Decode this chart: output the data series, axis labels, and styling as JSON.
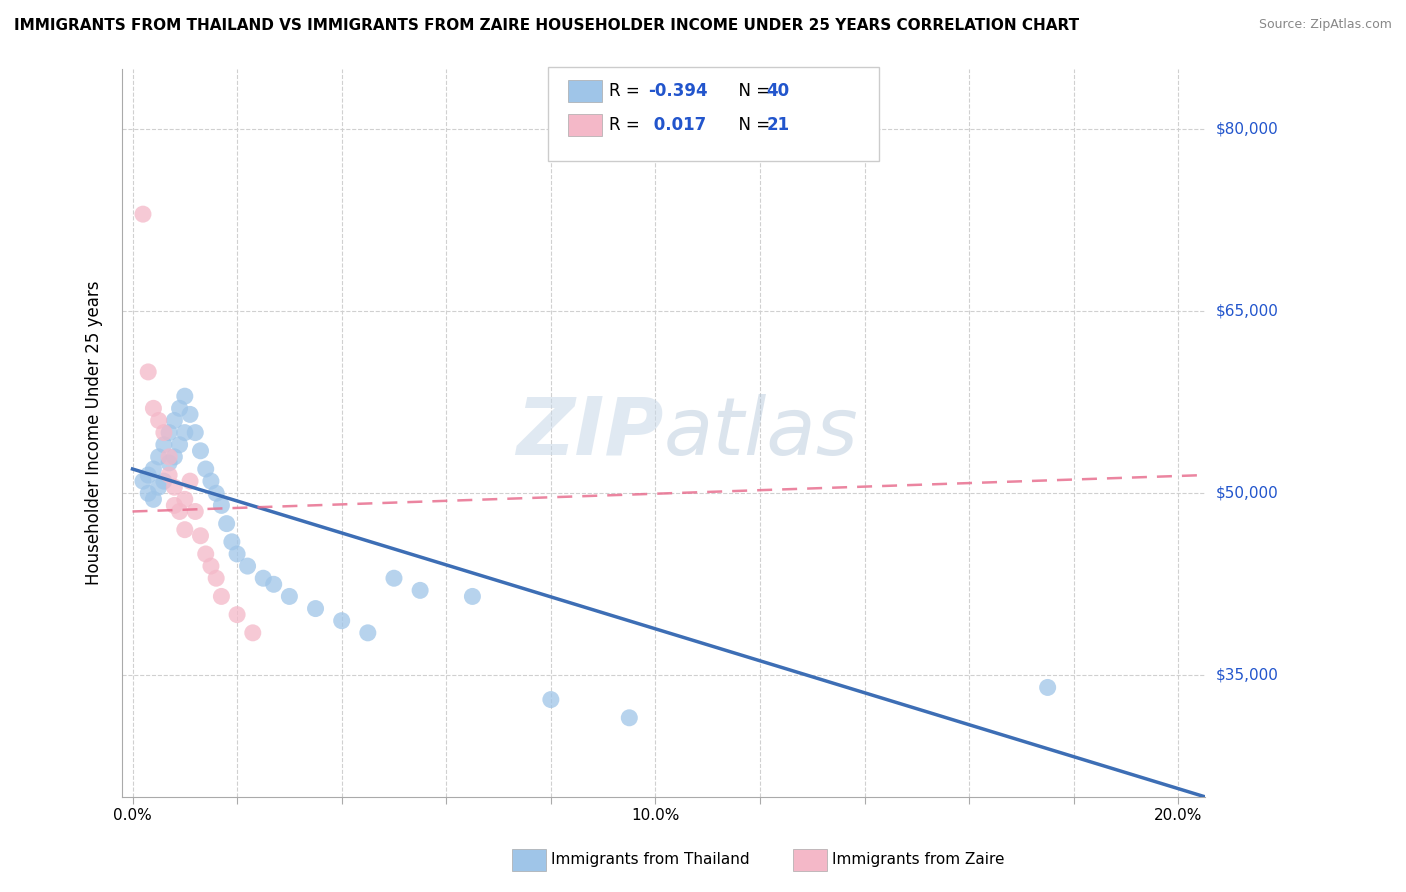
{
  "title": "IMMIGRANTS FROM THAILAND VS IMMIGRANTS FROM ZAIRE HOUSEHOLDER INCOME UNDER 25 YEARS CORRELATION CHART",
  "source": "Source: ZipAtlas.com",
  "ylabel": "Householder Income Under 25 years",
  "x_ticklabels": [
    "0.0%",
    "",
    "",
    "",
    "",
    "10.0%",
    "",
    "",
    "",
    "",
    "20.0%"
  ],
  "x_ticks": [
    0.0,
    0.02,
    0.04,
    0.06,
    0.08,
    0.1,
    0.12,
    0.14,
    0.16,
    0.18,
    0.2
  ],
  "xlim": [
    -0.002,
    0.205
  ],
  "ylim": [
    25000,
    85000
  ],
  "y_ticklabels": [
    "$35,000",
    "$50,000",
    "$65,000",
    "$80,000"
  ],
  "y_ticks": [
    35000,
    50000,
    65000,
    80000
  ],
  "watermark_text": "ZIPatlas",
  "background_color": "#ffffff",
  "grid_color": "#d0d0d0",
  "thailand_color": "#9fc5e8",
  "zaire_color": "#f4b8c8",
  "thailand_line_color": "#3d6eb5",
  "zaire_line_color": "#e87090",
  "thailand_line_x": [
    0.0,
    0.205
  ],
  "thailand_line_y": [
    52000,
    25000
  ],
  "zaire_line_x": [
    0.0,
    0.205
  ],
  "zaire_line_y": [
    48500,
    51500
  ],
  "thailand_pts": [
    [
      0.002,
      51000
    ],
    [
      0.003,
      51500
    ],
    [
      0.003,
      50000
    ],
    [
      0.004,
      52000
    ],
    [
      0.004,
      49500
    ],
    [
      0.005,
      53000
    ],
    [
      0.005,
      50500
    ],
    [
      0.006,
      54000
    ],
    [
      0.006,
      51000
    ],
    [
      0.007,
      55000
    ],
    [
      0.007,
      52500
    ],
    [
      0.008,
      56000
    ],
    [
      0.008,
      53000
    ],
    [
      0.009,
      57000
    ],
    [
      0.009,
      54000
    ],
    [
      0.01,
      58000
    ],
    [
      0.01,
      55000
    ],
    [
      0.011,
      56500
    ],
    [
      0.012,
      55000
    ],
    [
      0.013,
      53500
    ],
    [
      0.014,
      52000
    ],
    [
      0.015,
      51000
    ],
    [
      0.016,
      50000
    ],
    [
      0.017,
      49000
    ],
    [
      0.018,
      47500
    ],
    [
      0.019,
      46000
    ],
    [
      0.02,
      45000
    ],
    [
      0.022,
      44000
    ],
    [
      0.025,
      43000
    ],
    [
      0.027,
      42500
    ],
    [
      0.03,
      41500
    ],
    [
      0.035,
      40500
    ],
    [
      0.04,
      39500
    ],
    [
      0.045,
      38500
    ],
    [
      0.05,
      43000
    ],
    [
      0.055,
      42000
    ],
    [
      0.065,
      41500
    ],
    [
      0.08,
      33000
    ],
    [
      0.095,
      31500
    ],
    [
      0.175,
      34000
    ]
  ],
  "zaire_pts": [
    [
      0.002,
      73000
    ],
    [
      0.003,
      60000
    ],
    [
      0.004,
      57000
    ],
    [
      0.005,
      56000
    ],
    [
      0.006,
      55000
    ],
    [
      0.007,
      53000
    ],
    [
      0.007,
      51500
    ],
    [
      0.008,
      50500
    ],
    [
      0.008,
      49000
    ],
    [
      0.009,
      48500
    ],
    [
      0.01,
      47000
    ],
    [
      0.01,
      49500
    ],
    [
      0.011,
      51000
    ],
    [
      0.012,
      48500
    ],
    [
      0.013,
      46500
    ],
    [
      0.014,
      45000
    ],
    [
      0.015,
      44000
    ],
    [
      0.016,
      43000
    ],
    [
      0.017,
      41500
    ],
    [
      0.02,
      40000
    ],
    [
      0.023,
      38500
    ]
  ]
}
